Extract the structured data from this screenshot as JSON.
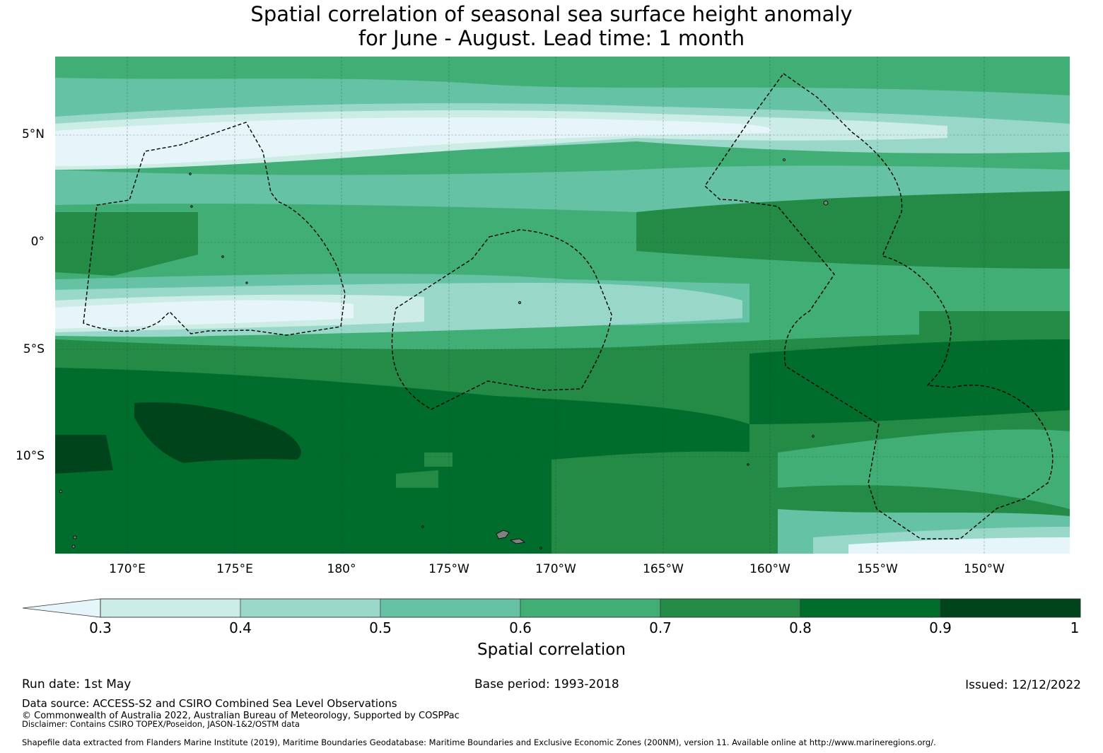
{
  "title": {
    "line1": "Spatial correlation of seasonal sea surface height anomaly",
    "line2": "for June - August. Lead time: 1 month"
  },
  "map": {
    "lat_labels": [
      "5°N",
      "0°",
      "5°S",
      "10°S"
    ],
    "lon_labels": [
      "170°E",
      "175°E",
      "180°",
      "175°W",
      "170°W",
      "165°W",
      "160°W",
      "155°W",
      "150°W"
    ],
    "land_color": "#808080",
    "boundary_style": "dashed black EEZ outlines"
  },
  "colorbar": {
    "label": "Spatial correlation",
    "ticks": [
      "0.3",
      "0.4",
      "0.5",
      "0.6",
      "0.7",
      "0.8",
      "0.9",
      "1"
    ],
    "colors": [
      "#e5f5f9",
      "#ccece6",
      "#99d8c9",
      "#66c2a4",
      "#41ae76",
      "#238b45",
      "#006d2c",
      "#00441b"
    ],
    "extend": "min"
  },
  "footer": {
    "run_date": "Run date: 1st May",
    "base_period": "Base period: 1993-2018",
    "issued": "Issued: 12/12/2022",
    "data_source": "Data source: ACCESS-S2 and CSIRO Combined Sea Level Observations",
    "copyright": "© Commonwealth of Australia 2022, Australian Bureau of Meteorology, Supported by COSPPac",
    "disclaimer": "Disclaimer: Contains CSIRO TOPEX/Poseidon, JASON-1&2/OSTM data",
    "shapefile": "Shapefile data extracted from Flanders Marine Institute (2019), Maritime Boundaries Geodatabase: Maritime Boundaries and Exclusive Economic Zones (200NM), version 11. Available online at http://www.marineregions.org/."
  }
}
